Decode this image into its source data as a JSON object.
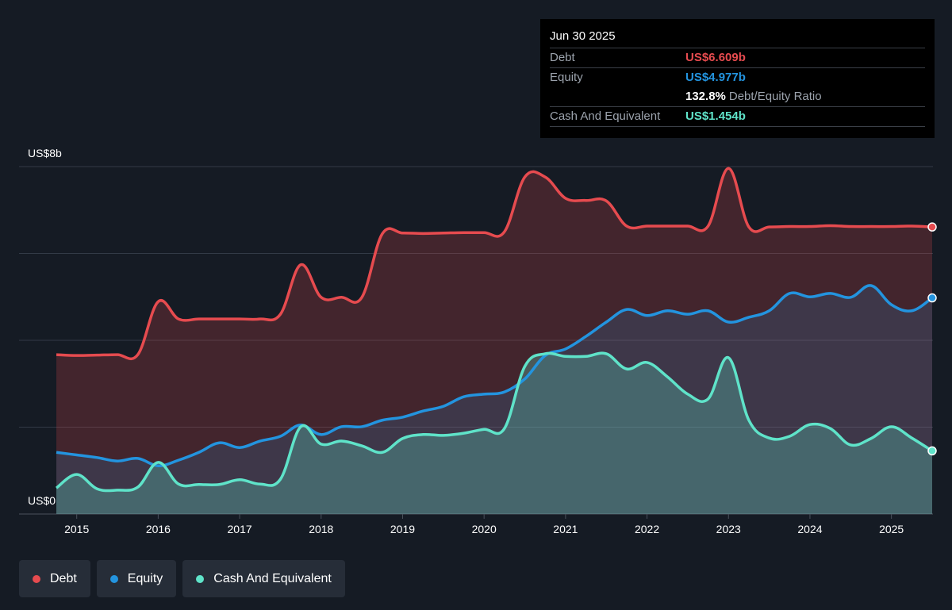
{
  "chart_data": {
    "type": "line",
    "xlim": [
      2014.74,
      2025.5
    ],
    "xticks": [
      2015,
      2016,
      2017,
      2018,
      2019,
      2020,
      2021,
      2022,
      2023,
      2024,
      2025
    ],
    "ylim": [
      0,
      8
    ],
    "yticks": [
      {
        "value": 0,
        "label": "US$0"
      },
      {
        "value": 2,
        "label": null
      },
      {
        "value": 4,
        "label": null
      },
      {
        "value": 6,
        "label": null
      },
      {
        "value": 8,
        "label": "US$8b"
      }
    ],
    "grid": true,
    "x": [
      2014.75,
      2015.0,
      2015.25,
      2015.5,
      2015.75,
      2016.0,
      2016.25,
      2016.5,
      2016.75,
      2017.0,
      2017.25,
      2017.5,
      2017.75,
      2018.0,
      2018.25,
      2018.5,
      2018.75,
      2019.0,
      2019.25,
      2019.5,
      2019.75,
      2020.0,
      2020.25,
      2020.5,
      2020.75,
      2021.0,
      2021.25,
      2021.5,
      2021.75,
      2022.0,
      2022.25,
      2022.5,
      2022.75,
      2023.0,
      2023.25,
      2023.5,
      2023.75,
      2024.0,
      2024.25,
      2024.5,
      2024.75,
      2025.0,
      2025.25,
      2025.5
    ],
    "series": [
      {
        "name": "Debt",
        "color": "#e64b4f",
        "values": [
          3.67,
          3.65,
          3.66,
          3.67,
          3.67,
          4.89,
          4.49,
          4.49,
          4.49,
          4.49,
          4.49,
          4.6,
          5.74,
          4.99,
          4.99,
          4.99,
          6.45,
          6.47,
          6.46,
          6.47,
          6.48,
          6.48,
          6.5,
          7.76,
          7.76,
          7.27,
          7.22,
          7.21,
          6.63,
          6.63,
          6.63,
          6.63,
          6.63,
          7.96,
          6.61,
          6.61,
          6.62,
          6.62,
          6.64,
          6.62,
          6.62,
          6.62,
          6.63,
          6.609
        ]
      },
      {
        "name": "Equity",
        "color": "#2394df",
        "values": [
          1.42,
          1.36,
          1.3,
          1.22,
          1.28,
          1.11,
          1.24,
          1.42,
          1.64,
          1.53,
          1.68,
          1.79,
          2.05,
          1.83,
          2.01,
          2.01,
          2.16,
          2.23,
          2.37,
          2.48,
          2.7,
          2.76,
          2.81,
          3.11,
          3.65,
          3.8,
          4.09,
          4.42,
          4.71,
          4.57,
          4.68,
          4.6,
          4.68,
          4.42,
          4.53,
          4.68,
          5.08,
          5.0,
          5.08,
          4.99,
          5.26,
          4.82,
          4.68,
          4.977
        ]
      },
      {
        "name": "Cash And Equivalent",
        "color": "#5fe3c9",
        "values": [
          0.6,
          0.91,
          0.58,
          0.55,
          0.62,
          1.19,
          0.69,
          0.68,
          0.68,
          0.79,
          0.69,
          0.8,
          2.01,
          1.61,
          1.68,
          1.57,
          1.42,
          1.74,
          1.83,
          1.81,
          1.86,
          1.95,
          1.97,
          3.4,
          3.69,
          3.63,
          3.63,
          3.69,
          3.34,
          3.49,
          3.16,
          2.76,
          2.65,
          3.6,
          2.16,
          1.75,
          1.79,
          2.06,
          1.97,
          1.59,
          1.74,
          2.01,
          1.75,
          1.454
        ]
      }
    ],
    "tooltip": {
      "date": "Jun 30 2025",
      "rows": [
        {
          "label": "Debt",
          "value": "US$6.609b"
        },
        {
          "label": "Equity",
          "value": "US$4.977b"
        },
        {
          "label": "Cash And Equivalent",
          "value": "US$1.454b"
        }
      ],
      "ratio": "132.8%",
      "ratio_label": "Debt/Equity Ratio"
    }
  }
}
